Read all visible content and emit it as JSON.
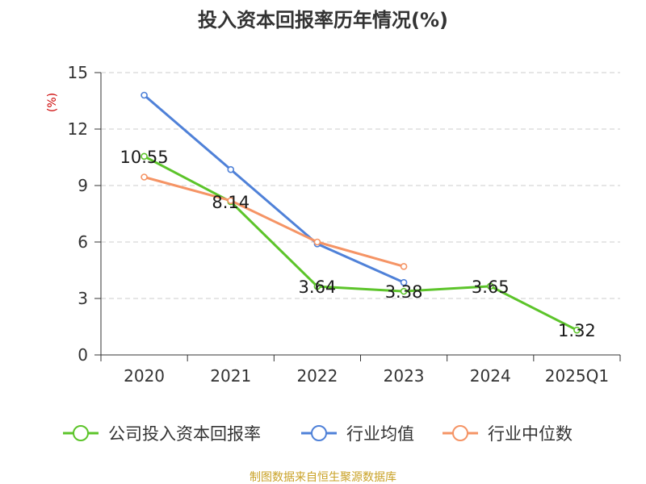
{
  "chart_data": {
    "type": "line",
    "title": "投入资本回报率历年情况(%)",
    "ylabel": "(%)",
    "xlabel": "",
    "categories": [
      "2020",
      "2021",
      "2022",
      "2023",
      "2024",
      "2025Q1"
    ],
    "ylim": [
      0,
      15
    ],
    "yticks": [
      0,
      3,
      6,
      9,
      12,
      15
    ],
    "grid": true,
    "legend_position": "bottom",
    "series": [
      {
        "name": "公司投入资本回报率",
        "color": "#5cc42a",
        "values": [
          10.55,
          8.14,
          3.64,
          3.38,
          3.65,
          1.32
        ],
        "labels": [
          "10.55",
          "8.14",
          "3.64",
          "3.38",
          "3.65",
          "1.32"
        ]
      },
      {
        "name": "行业均值",
        "color": "#4f81d8",
        "values": [
          13.8,
          9.85,
          5.9,
          3.85,
          null,
          null
        ]
      },
      {
        "name": "行业中位数",
        "color": "#f59465",
        "values": [
          9.45,
          8.2,
          6.0,
          4.7,
          null,
          null
        ]
      }
    ],
    "source": "制图数据来自恒生聚源数据库",
    "colors": {
      "axis": "#333333",
      "grid": "#cccccc",
      "ylabel": "#cc0000",
      "source": "#c9a227"
    }
  }
}
